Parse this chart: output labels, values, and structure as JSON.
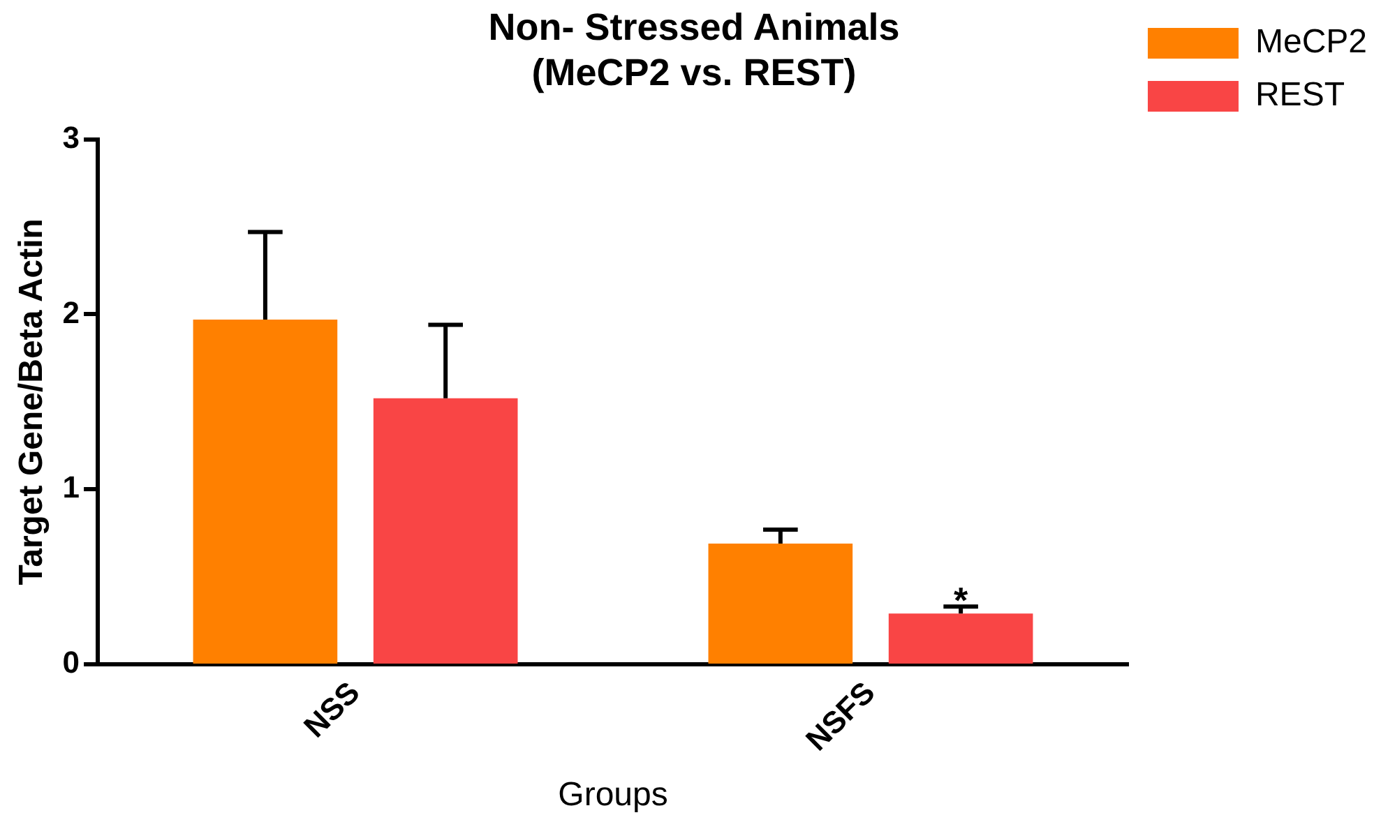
{
  "chart_data": {
    "type": "bar",
    "title": "Non- Stressed Animals\n(MeCP2 vs. REST)",
    "xlabel": "Groups",
    "ylabel": "Target Gene/Beta Actin",
    "categories": [
      "NSS",
      "NSFS"
    ],
    "series": [
      {
        "name": "MeCP2",
        "color": "#ff8000",
        "values": [
          1.97,
          0.69
        ],
        "errors": [
          [
            1.97,
            2.47
          ],
          [
            0.69,
            0.77
          ]
        ]
      },
      {
        "name": "REST",
        "color": "#f94545",
        "values": [
          1.52,
          0.29
        ],
        "errors": [
          [
            1.52,
            1.94
          ],
          [
            0.29,
            0.33
          ]
        ]
      }
    ],
    "ylim": [
      0,
      3
    ],
    "yticks": [
      0,
      1,
      2,
      3
    ],
    "grid": false,
    "legend": "top right",
    "annotations": [
      "*"
    ]
  }
}
